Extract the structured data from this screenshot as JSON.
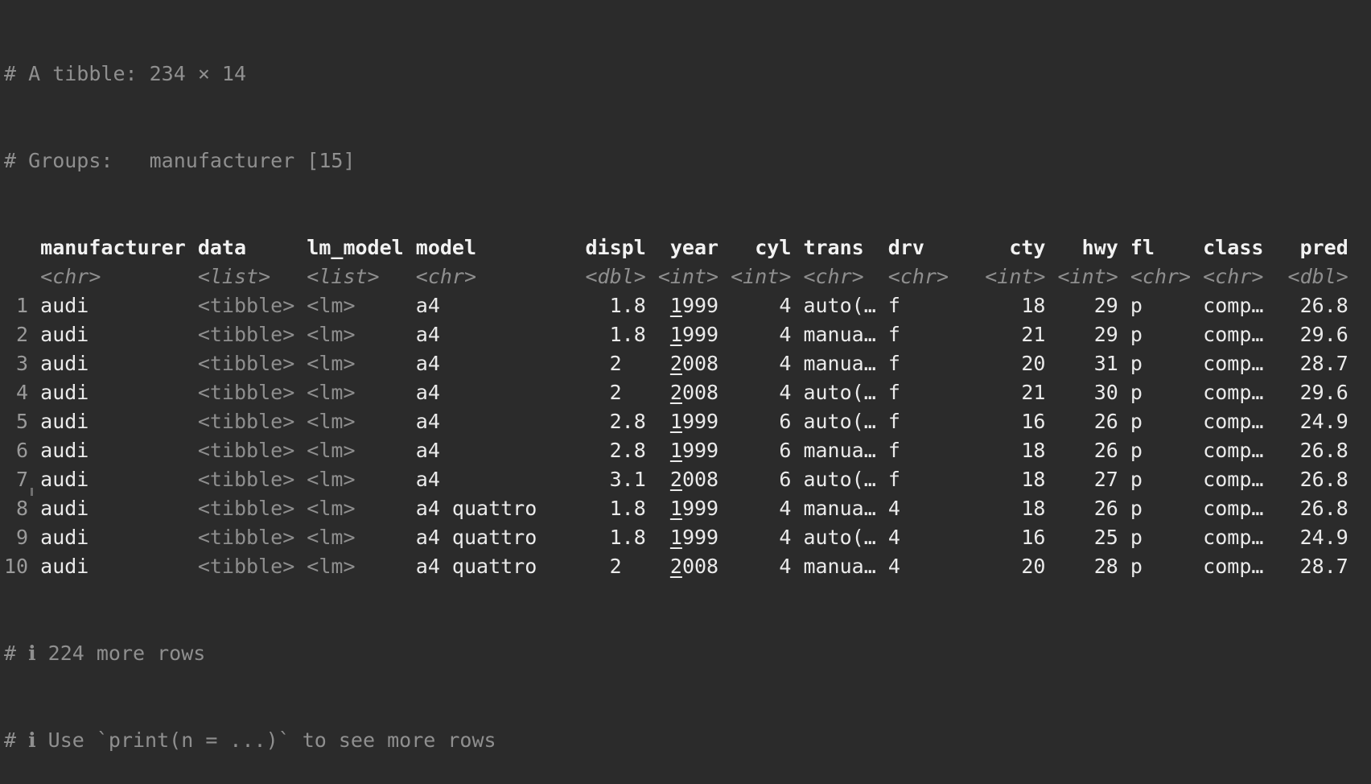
{
  "terminal": {
    "background_color": "#2b2b2b",
    "text_color_white": "#ebebeb",
    "text_color_gray": "#8f8f8f",
    "summary_line": "# A tibble: 234 × 14",
    "groups_line": "# Groups:   manufacturer [15]",
    "footer_more_rows": "# ℹ 224 more rows",
    "footer_hint": "# ℹ Use `print(n = ...)` to see more rows",
    "table": {
      "columns": [
        {
          "name": "manufacturer",
          "type": "<chr>",
          "width": 12,
          "align": "left",
          "dim": false
        },
        {
          "name": "data",
          "type": "<list>",
          "width": 8,
          "align": "left",
          "dim": true
        },
        {
          "name": "lm_model",
          "type": "<list>",
          "width": 8,
          "align": "left",
          "dim": true
        },
        {
          "name": "model",
          "type": "<chr>",
          "width": 10,
          "align": "left",
          "dim": false
        },
        {
          "name": "displ",
          "type": "<dbl>",
          "width": 8,
          "align": "right",
          "dim": false
        },
        {
          "name": "year",
          "type": "<int>",
          "width": 5,
          "align": "right",
          "dim": false,
          "underline_first_digit": true
        },
        {
          "name": "cyl",
          "type": "<int>",
          "width": 5,
          "align": "right",
          "dim": false
        },
        {
          "name": "trans",
          "type": "<chr>",
          "width": 6,
          "align": "left",
          "dim": false
        },
        {
          "name": "drv",
          "type": "<chr>",
          "width": 5,
          "align": "left",
          "dim": false
        },
        {
          "name": "cty",
          "type": "<int>",
          "width": 7,
          "align": "right",
          "dim": false
        },
        {
          "name": "hwy",
          "type": "<int>",
          "width": 5,
          "align": "right",
          "dim": false
        },
        {
          "name": "fl",
          "type": "<chr>",
          "width": 5,
          "align": "left",
          "dim": false
        },
        {
          "name": "class",
          "type": "<chr>",
          "width": 5,
          "align": "left",
          "dim": false
        },
        {
          "name": "pred",
          "type": "<dbl>",
          "width": 6,
          "align": "right",
          "dim": false
        }
      ],
      "rows": [
        {
          "n": "1",
          "cells": [
            "audi",
            "<tibble>",
            "<lm>",
            "a4",
            "1.8",
            "1999",
            "4",
            "auto(…",
            "f",
            "18",
            "29",
            "p",
            "comp…",
            "26.8"
          ]
        },
        {
          "n": "2",
          "cells": [
            "audi",
            "<tibble>",
            "<lm>",
            "a4",
            "1.8",
            "1999",
            "4",
            "manua…",
            "f",
            "21",
            "29",
            "p",
            "comp…",
            "29.6"
          ]
        },
        {
          "n": "3",
          "cells": [
            "audi",
            "<tibble>",
            "<lm>",
            "a4",
            "2  ",
            "2008",
            "4",
            "manua…",
            "f",
            "20",
            "31",
            "p",
            "comp…",
            "28.7"
          ]
        },
        {
          "n": "4",
          "cells": [
            "audi",
            "<tibble>",
            "<lm>",
            "a4",
            "2  ",
            "2008",
            "4",
            "auto(…",
            "f",
            "21",
            "30",
            "p",
            "comp…",
            "29.6"
          ]
        },
        {
          "n": "5",
          "cells": [
            "audi",
            "<tibble>",
            "<lm>",
            "a4",
            "2.8",
            "1999",
            "6",
            "auto(…",
            "f",
            "16",
            "26",
            "p",
            "comp…",
            "24.9"
          ]
        },
        {
          "n": "6",
          "cells": [
            "audi",
            "<tibble>",
            "<lm>",
            "a4",
            "2.8",
            "1999",
            "6",
            "manua…",
            "f",
            "18",
            "26",
            "p",
            "comp…",
            "26.8"
          ]
        },
        {
          "n": "7",
          "cells": [
            "audi",
            "<tibble>",
            "<lm>",
            "a4",
            "3.1",
            "2008",
            "6",
            "auto(…",
            "f",
            "18",
            "27",
            "p",
            "comp…",
            "26.8"
          ]
        },
        {
          "n": "8",
          "cells": [
            "audi",
            "<tibble>",
            "<lm>",
            "a4 quattro",
            "1.8",
            "1999",
            "4",
            "manua…",
            "4",
            "18",
            "26",
            "p",
            "comp…",
            "26.8"
          ]
        },
        {
          "n": "9",
          "cells": [
            "audi",
            "<tibble>",
            "<lm>",
            "a4 quattro",
            "1.8",
            "1999",
            "4",
            "auto(…",
            "4",
            "16",
            "25",
            "p",
            "comp…",
            "24.9"
          ]
        },
        {
          "n": "10",
          "cells": [
            "audi",
            "<tibble>",
            "<lm>",
            "a4 quattro",
            "2  ",
            "2008",
            "4",
            "manua…",
            "4",
            "20",
            "28",
            "p",
            "comp…",
            "28.7"
          ]
        }
      ]
    }
  }
}
